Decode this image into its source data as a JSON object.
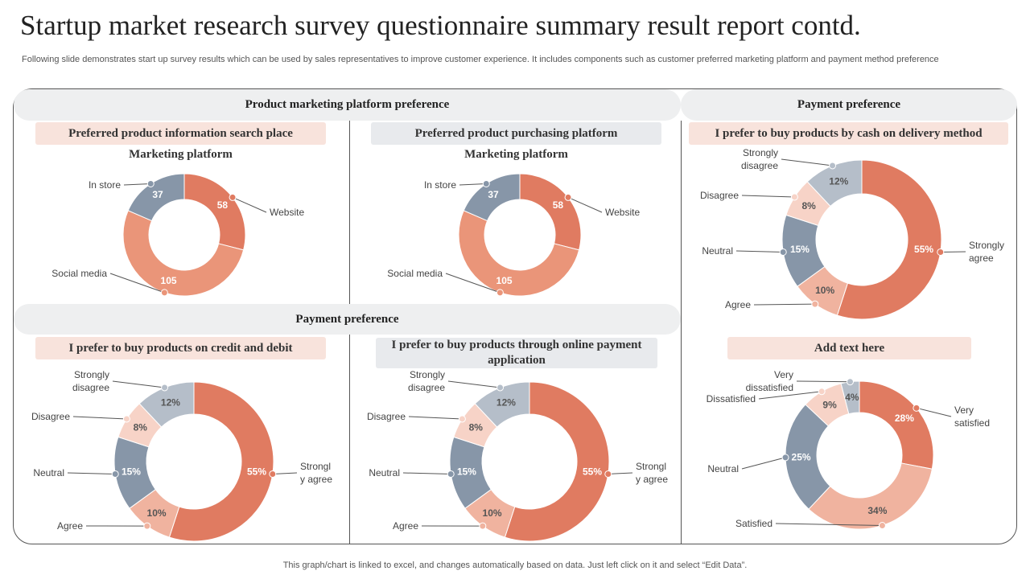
{
  "page": {
    "title": "Startup market research survey questionnaire summary result report contd.",
    "subtitle": "Following slide demonstrates start up survey results which can be used by sales representatives to improve customer experience. It includes components such as customer preferred marketing platform and payment method preference",
    "footer": "This graph/chart is linked to excel, and changes automatically based on data. Just left click on it and select “Edit Data”."
  },
  "headers": {
    "marketing": "Product marketing platform preference",
    "payment_right": "Payment preference",
    "payment_bottom": "Payment preference"
  },
  "panels": {
    "p1": {
      "heading": "Preferred product information search place",
      "subheading": "Marketing platform"
    },
    "p2": {
      "heading": "Preferred product purchasing platform",
      "subheading": "Marketing platform"
    },
    "p3": {
      "heading": "I prefer to buy products by cash on delivery method"
    },
    "p4": {
      "heading": "I prefer to buy products on credit and debit"
    },
    "p5": {
      "heading": "I prefer to buy products through online payment application"
    },
    "p6": {
      "heading": "Add text here"
    }
  },
  "colors": {
    "dark_orange": "#e07b61",
    "light_orange": "#ea9579",
    "pale_orange": "#f0b39f",
    "pale_pink": "#f7d3c7",
    "slate": "#8796a8",
    "light_slate": "#b5bec9"
  },
  "chart_data": [
    {
      "id": "p1",
      "type": "pie",
      "donut": true,
      "slices": [
        {
          "label": "Website",
          "value": 58,
          "display": "58",
          "color": "#e07b61"
        },
        {
          "label": "Social media",
          "value": 105,
          "display": "105",
          "color": "#ea9579"
        },
        {
          "label": "In store",
          "value": 37,
          "display": "37",
          "color": "#8796a8"
        }
      ]
    },
    {
      "id": "p2",
      "type": "pie",
      "donut": true,
      "slices": [
        {
          "label": "Website",
          "value": 58,
          "display": "58",
          "color": "#e07b61"
        },
        {
          "label": "Social media",
          "value": 105,
          "display": "105",
          "color": "#ea9579"
        },
        {
          "label": "In store",
          "value": 37,
          "display": "37",
          "color": "#8796a8"
        }
      ]
    },
    {
      "id": "p3",
      "type": "pie",
      "donut": true,
      "slices": [
        {
          "label": "Strongly agree",
          "value": 55,
          "display": "55%",
          "color": "#e07b61"
        },
        {
          "label": "Agree",
          "value": 10,
          "display": "10%",
          "color": "#f0b39f"
        },
        {
          "label": "Neutral",
          "value": 15,
          "display": "15%",
          "color": "#8796a8"
        },
        {
          "label": "Disagree",
          "value": 8,
          "display": "8%",
          "color": "#f7d3c7"
        },
        {
          "label": "Strongly disagree",
          "value": 12,
          "display": "12%",
          "color": "#b5bec9"
        }
      ]
    },
    {
      "id": "p4",
      "type": "pie",
      "donut": true,
      "slices": [
        {
          "label": "Strongl y agree",
          "value": 55,
          "display": "55%",
          "color": "#e07b61"
        },
        {
          "label": "Agree",
          "value": 10,
          "display": "10%",
          "color": "#f0b39f"
        },
        {
          "label": "Neutral",
          "value": 15,
          "display": "15%",
          "color": "#8796a8"
        },
        {
          "label": "Disagree",
          "value": 8,
          "display": "8%",
          "color": "#f7d3c7"
        },
        {
          "label": "Strongly disagree",
          "value": 12,
          "display": "12%",
          "color": "#b5bec9"
        }
      ]
    },
    {
      "id": "p5",
      "type": "pie",
      "donut": true,
      "slices": [
        {
          "label": "Strongl y agree",
          "value": 55,
          "display": "55%",
          "color": "#e07b61"
        },
        {
          "label": "Agree",
          "value": 10,
          "display": "10%",
          "color": "#f0b39f"
        },
        {
          "label": "Neutral",
          "value": 15,
          "display": "15%",
          "color": "#8796a8"
        },
        {
          "label": "Disagree",
          "value": 8,
          "display": "8%",
          "color": "#f7d3c7"
        },
        {
          "label": "Strongly disagree",
          "value": 12,
          "display": "12%",
          "color": "#b5bec9"
        }
      ]
    },
    {
      "id": "p6",
      "type": "pie",
      "donut": true,
      "slices": [
        {
          "label": "Very satisfied",
          "value": 28,
          "display": "28%",
          "color": "#e07b61"
        },
        {
          "label": "Satisfied",
          "value": 34,
          "display": "34%",
          "color": "#f0b39f"
        },
        {
          "label": "Neutral",
          "value": 25,
          "display": "25%",
          "color": "#8796a8"
        },
        {
          "label": "Dissatisfied",
          "value": 9,
          "display": "9%",
          "color": "#f7d3c7"
        },
        {
          "label": "Very dissatisfied",
          "value": 4,
          "display": "4%",
          "color": "#b5bec9"
        }
      ]
    }
  ]
}
